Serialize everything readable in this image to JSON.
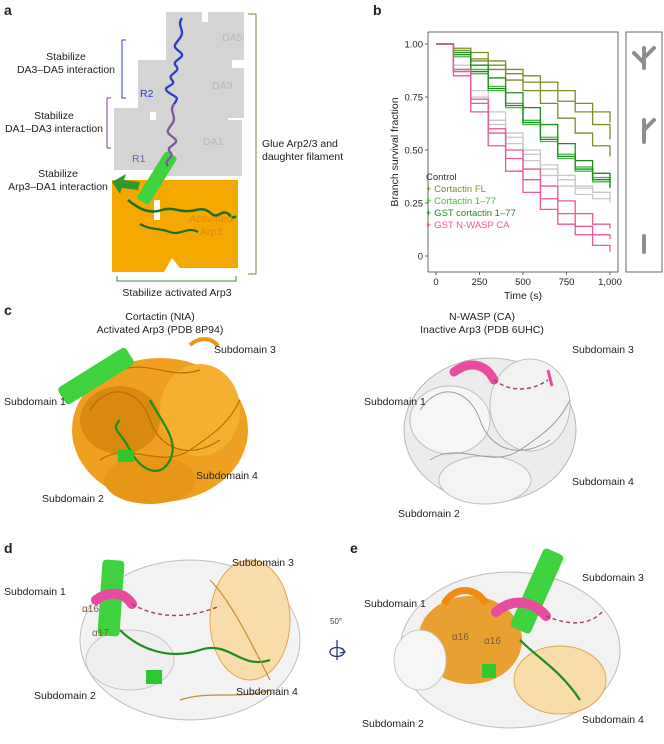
{
  "panels": {
    "a": "a",
    "b": "b",
    "c": "c",
    "d": "d",
    "e": "e"
  },
  "panel_a": {
    "da5": "DA5",
    "da3": "DA3",
    "da1": "DA1",
    "r2": "R2",
    "r1": "R1",
    "stab1_line1": "Stabilize",
    "stab1_line2": "DA3–DA5 interaction",
    "stab2_line1": "Stabilize",
    "stab2_line2": "DA1–DA3 interaction",
    "stab3_line1": "Stabilize",
    "stab3_line2": "Arp3–DA1 interaction",
    "activated_line1": "Activated",
    "activated_line2": "Arp3",
    "glue_line1": "Glue Arp2/3 and",
    "glue_line2": "daughter filament",
    "stab_bottom": "Stabilize activated Arp3",
    "colors": {
      "actin": "#d4d4d4",
      "arp3": "#f5a800",
      "arp3_text": "#e8821a",
      "r2": "#2a3fc8",
      "r1": "#7a5a9a",
      "cortactin": "#2e9a2e",
      "bracket_blue": "#2a3fc8",
      "bracket_purple": "#7a3f8a",
      "bracket_green": "#6a8f3a"
    }
  },
  "chart_data": {
    "type": "line",
    "xlabel": "Time (s)",
    "ylabel": "Branch survival fraction",
    "xlim": [
      0,
      1000
    ],
    "ylim": [
      0,
      1
    ],
    "xticks": [
      "0",
      "250",
      "500",
      "750",
      "1,000"
    ],
    "yticks": [
      "0",
      "0.25",
      "0.50",
      "0.75",
      "1.00"
    ],
    "legend_position": "bottom-left",
    "series": [
      {
        "name": "Control",
        "color": "#c8c8c8",
        "replicates": [
          {
            "x": [
              0,
              100,
              200,
              300,
              400,
              500,
              600,
              700,
              800,
              900,
              1000
            ],
            "y": [
              1.0,
              0.88,
              0.75,
              0.62,
              0.53,
              0.45,
              0.38,
              0.33,
              0.29,
              0.27,
              0.27
            ]
          },
          {
            "x": [
              0,
              100,
              200,
              300,
              400,
              500,
              600,
              700,
              800,
              900,
              1000
            ],
            "y": [
              1.0,
              0.87,
              0.74,
              0.64,
              0.56,
              0.48,
              0.41,
              0.36,
              0.32,
              0.3,
              0.29
            ]
          },
          {
            "x": [
              0,
              100,
              200,
              300,
              400,
              500,
              600,
              700,
              800,
              900,
              1000
            ],
            "y": [
              1.0,
              0.9,
              0.78,
              0.68,
              0.58,
              0.5,
              0.43,
              0.38,
              0.33,
              0.3,
              0.25
            ]
          }
        ]
      },
      {
        "name": "+ Cortactin FL",
        "color": "#7a8f2a",
        "replicates": [
          {
            "x": [
              0,
              100,
              200,
              300,
              400,
              500,
              600,
              700,
              800,
              900,
              1000
            ],
            "y": [
              1.0,
              0.98,
              0.96,
              0.92,
              0.88,
              0.85,
              0.82,
              0.78,
              0.72,
              0.68,
              0.63
            ]
          },
          {
            "x": [
              0,
              100,
              200,
              300,
              400,
              500,
              600,
              700,
              800,
              900,
              1000
            ],
            "y": [
              1.0,
              0.97,
              0.93,
              0.9,
              0.86,
              0.82,
              0.78,
              0.73,
              0.68,
              0.62,
              0.55
            ]
          },
          {
            "x": [
              0,
              100,
              200,
              300,
              400,
              500,
              600,
              700,
              800,
              900,
              1000
            ],
            "y": [
              1.0,
              0.96,
              0.92,
              0.88,
              0.83,
              0.78,
              0.72,
              0.65,
              0.58,
              0.52,
              0.47
            ]
          }
        ]
      },
      {
        "name": "+ Cortactin 1–77",
        "color": "#44b844",
        "replicates": [
          {
            "x": [
              0,
              100,
              200,
              300,
              400,
              500,
              600,
              700,
              800,
              900,
              1000
            ],
            "y": [
              1.0,
              0.95,
              0.88,
              0.8,
              0.72,
              0.64,
              0.56,
              0.48,
              0.42,
              0.37,
              0.35
            ]
          },
          {
            "x": [
              0,
              100,
              200,
              300,
              400,
              500,
              600,
              700,
              800,
              900,
              1000
            ],
            "y": [
              1.0,
              0.94,
              0.86,
              0.78,
              0.7,
              0.62,
              0.54,
              0.46,
              0.4,
              0.35,
              0.33
            ]
          }
        ]
      },
      {
        "name": "+ GST cortactin 1–77",
        "color": "#1e8c1e",
        "replicates": [
          {
            "x": [
              0,
              100,
              200,
              300,
              400,
              500,
              600,
              700,
              800,
              900,
              1000
            ],
            "y": [
              1.0,
              0.96,
              0.9,
              0.84,
              0.77,
              0.7,
              0.62,
              0.53,
              0.45,
              0.39,
              0.36
            ]
          },
          {
            "x": [
              0,
              100,
              200,
              300,
              400,
              500,
              600,
              700,
              800,
              900,
              1000
            ],
            "y": [
              1.0,
              0.95,
              0.87,
              0.79,
              0.71,
              0.63,
              0.55,
              0.47,
              0.41,
              0.36,
              0.32
            ]
          }
        ]
      },
      {
        "name": "+ GST N-WASP CA",
        "color": "#e8589a",
        "replicates": [
          {
            "x": [
              0,
              100,
              200,
              300,
              400,
              500,
              600,
              700,
              800,
              900,
              1000
            ],
            "y": [
              1.0,
              0.85,
              0.68,
              0.52,
              0.4,
              0.3,
              0.22,
              0.15,
              0.1,
              0.05,
              0.02
            ]
          },
          {
            "x": [
              0,
              100,
              200,
              300,
              400,
              500,
              600,
              700,
              800,
              900,
              1000
            ],
            "y": [
              1.0,
              0.87,
              0.72,
              0.58,
              0.46,
              0.36,
              0.27,
              0.2,
              0.14,
              0.1,
              0.08
            ]
          },
          {
            "x": [
              0,
              100,
              200,
              300,
              400,
              500,
              600,
              700,
              800,
              900,
              1000
            ],
            "y": [
              1.0,
              0.88,
              0.74,
              0.6,
              0.5,
              0.41,
              0.33,
              0.26,
              0.2,
              0.15,
              0.13
            ]
          }
        ]
      }
    ]
  },
  "panel_c": {
    "left_title1": "Cortactin (NtA)",
    "left_title2": "Activated Arp3 (PDB 8P94)",
    "right_title1": "N-WASP (CA)",
    "right_title2": "Inactive Arp3 (PDB 6UHC)",
    "sub1": "Subdomain 1",
    "sub2": "Subdomain 2",
    "sub3": "Subdomain 3",
    "sub4": "Subdomain 4"
  },
  "panel_d": {
    "sub1": "Subdomain 1",
    "sub2": "Subdomain 2",
    "sub3": "Subdomain 3",
    "sub4": "Subdomain 4",
    "a16": "α16",
    "a17": "α17"
  },
  "panel_e": {
    "sub1": "Subdomain 1",
    "sub2": "Subdomain 2",
    "sub3": "Subdomain 3",
    "sub4": "Subdomain 4",
    "a16a": "α16",
    "a16b": "α16"
  },
  "rotation": "50°"
}
